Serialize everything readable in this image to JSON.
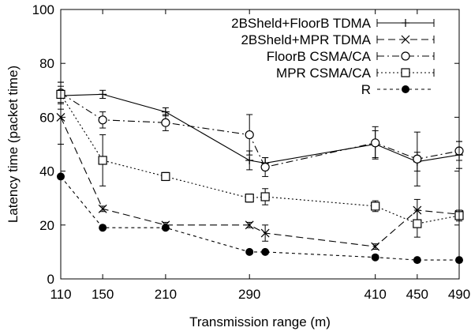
{
  "chart_data": {
    "type": "line",
    "title": "",
    "xlabel": "Transmission range (m)",
    "ylabel": "Latency time (packet time)",
    "xlim": [
      110,
      490
    ],
    "ylim": [
      0,
      100
    ],
    "x_ticks": [
      "110",
      "150",
      "210",
      "290",
      "410",
      "450",
      "490"
    ],
    "y_ticks": [
      "0",
      "20",
      "40",
      "60",
      "80",
      "100"
    ],
    "grid": false,
    "legend_position": "top-right",
    "series": [
      {
        "name": "2BSheld+FloorB TDMA",
        "line_style": "solid",
        "marker": "plus",
        "x": [
          110,
          150,
          210,
          290,
          305,
          410,
          450,
          490
        ],
        "y": [
          68,
          68.5,
          62,
          44,
          43,
          50,
          43.5,
          46
        ],
        "error": [
          5,
          1.5,
          1.5,
          3.5,
          2,
          5,
          3.5,
          5
        ]
      },
      {
        "name": "2BSheld+MPR TDMA",
        "line_style": "dashed",
        "marker": "x",
        "x": [
          110,
          150,
          210,
          290,
          305,
          410,
          450,
          490
        ],
        "y": [
          60,
          26,
          20,
          20,
          17,
          12,
          25.5,
          24
        ],
        "error": [
          10,
          1,
          1,
          1,
          3,
          1,
          4,
          1.5
        ]
      },
      {
        "name": "FloorB CSMA/CA",
        "line_style": "dash-dot",
        "marker": "circle-open",
        "x": [
          110,
          150,
          210,
          290,
          305,
          410,
          450,
          490
        ],
        "y": [
          69,
          59,
          58,
          53.5,
          41.5,
          50.5,
          44.5,
          47.5
        ],
        "error": [
          4,
          3,
          3,
          7.5,
          3.5,
          6,
          10,
          3.5
        ]
      },
      {
        "name": "MPR CSMA/CA",
        "line_style": "dotted",
        "marker": "square-open",
        "x": [
          110,
          150,
          210,
          290,
          305,
          410,
          450,
          490
        ],
        "y": [
          68.5,
          44,
          38,
          30,
          30.5,
          27,
          20.5,
          23.5
        ],
        "error": [
          3,
          9.5,
          1.5,
          1.5,
          3,
          2,
          5,
          2
        ]
      },
      {
        "name": "R",
        "line_style": "dashed-short",
        "marker": "circle-filled",
        "x": [
          110,
          150,
          210,
          290,
          305,
          410,
          450,
          490
        ],
        "y": [
          38,
          19,
          19,
          10,
          10,
          8,
          7,
          7
        ],
        "error": [
          0,
          0,
          0,
          0,
          0,
          0,
          0,
          0
        ]
      }
    ]
  }
}
